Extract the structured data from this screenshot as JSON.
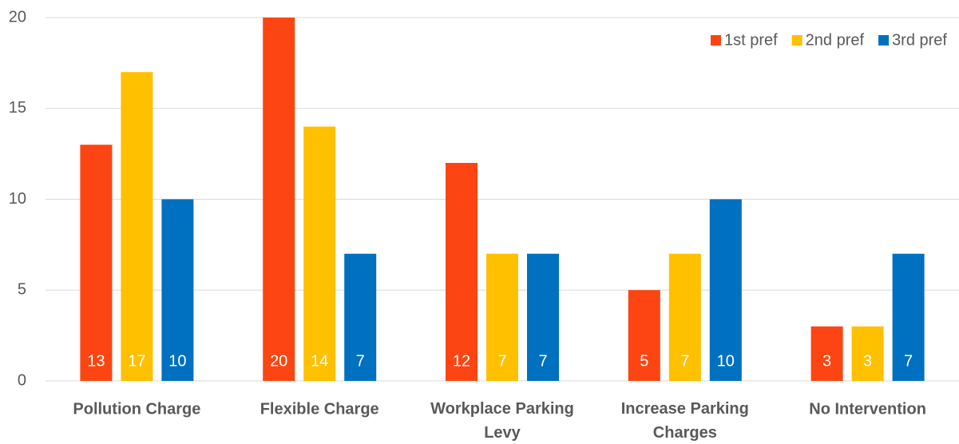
{
  "chart_data": {
    "type": "bar",
    "categories": [
      "Pollution Charge",
      "Flexible Charge",
      "Workplace Parking Levy",
      "Increase Parking Charges",
      "No Intervention"
    ],
    "series": [
      {
        "name": "1st pref",
        "color": "#fc4512",
        "values": [
          13,
          20,
          12,
          5,
          3
        ]
      },
      {
        "name": "2nd pref",
        "color": "#ffc000",
        "values": [
          17,
          14,
          7,
          7,
          3
        ]
      },
      {
        "name": "3rd pref",
        "color": "#0070c0",
        "values": [
          10,
          7,
          7,
          10,
          7
        ]
      }
    ],
    "ylim": [
      0,
      20
    ],
    "yticks": [
      0,
      5,
      10,
      15,
      20
    ],
    "grid": true,
    "legend": "upper right"
  }
}
